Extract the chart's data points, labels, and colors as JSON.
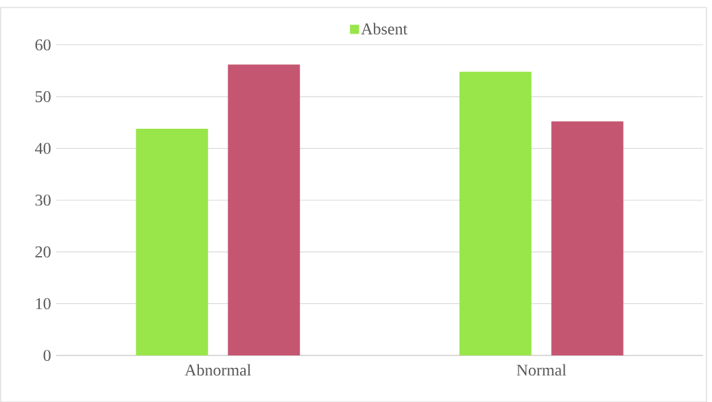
{
  "chart_data": {
    "type": "bar",
    "categories": [
      "Abnormal",
      "Normal"
    ],
    "series": [
      {
        "name": "Absent",
        "color": "#98e64a",
        "values": [
          43.8,
          54.8
        ]
      },
      {
        "color": "#c55671",
        "values": [
          56.2,
          45.2
        ]
      }
    ],
    "ylim": [
      0,
      60
    ],
    "yticks": [
      0,
      10,
      20,
      30,
      40,
      50,
      60
    ],
    "grid": "y",
    "legend": "top"
  }
}
